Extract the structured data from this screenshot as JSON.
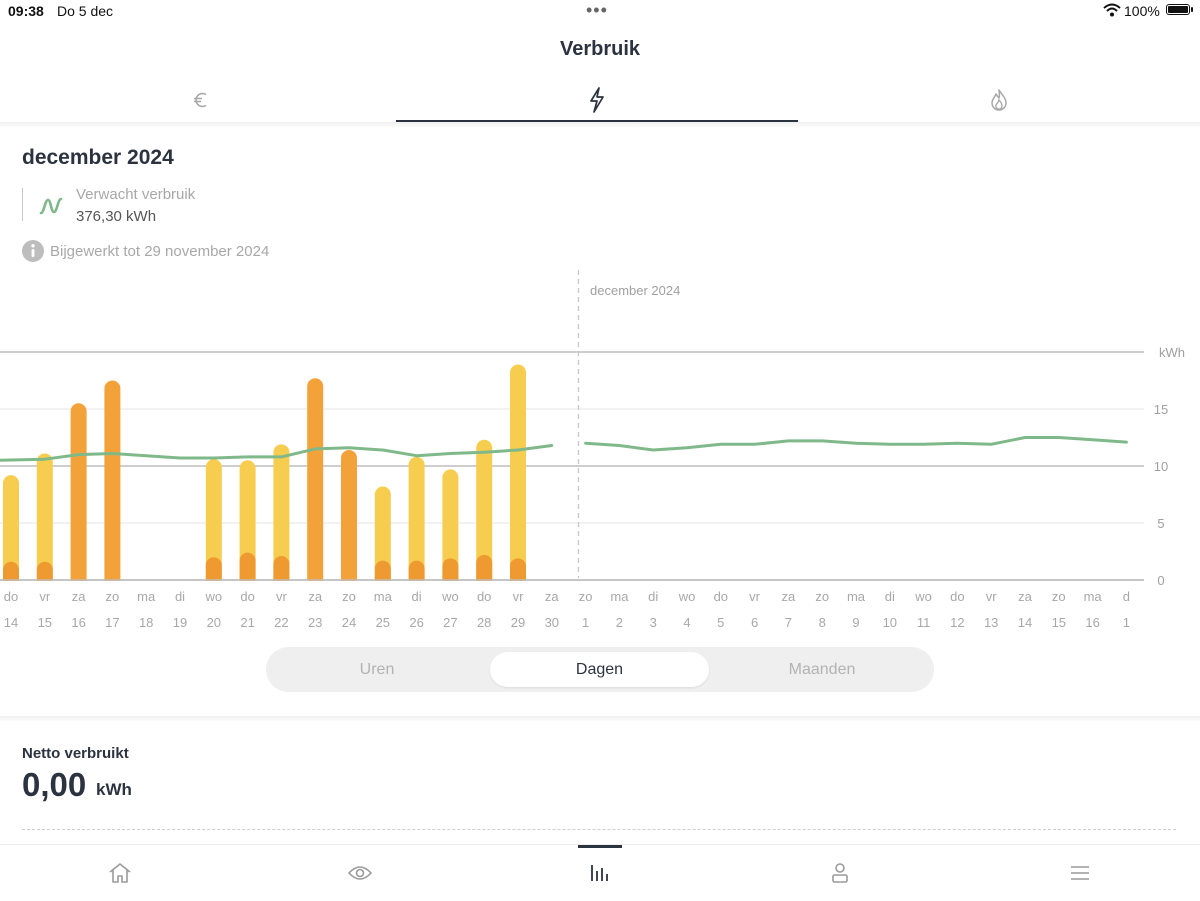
{
  "status_bar": {
    "time": "09:38",
    "date": "Do 5 dec",
    "battery": "100%"
  },
  "header": {
    "title": "Verbruik"
  },
  "tabs": [
    {
      "name": "euro-icon",
      "active": false
    },
    {
      "name": "electricity-icon",
      "active": true
    },
    {
      "name": "gas-flame-icon",
      "active": false
    }
  ],
  "summary": {
    "month": "december 2024",
    "legend_label": "Verwacht verbruik",
    "legend_value": "376,30 kWh",
    "updated": "Bijgewerkt tot 29 november 2024"
  },
  "chart_data": {
    "type": "bar",
    "month_label": "december 2024",
    "unit": "kWh",
    "y_ticks": [
      0,
      5,
      10,
      15
    ],
    "ylim": [
      0,
      20
    ],
    "grid": true,
    "colors": {
      "weekday": "#f6cd4f",
      "weekend": "#f3a23a",
      "baseline": "#ee9a30",
      "expected": "#7fb98a",
      "grid": "#e9e9e9",
      "axis": "#bdbdbd"
    },
    "days": [
      {
        "dow": "do",
        "day": "14",
        "value": 9.2,
        "type": "weekday",
        "base": 1.6
      },
      {
        "dow": "vr",
        "day": "15",
        "value": 11.1,
        "type": "weekday",
        "base": 1.6
      },
      {
        "dow": "za",
        "day": "16",
        "value": 15.5,
        "type": "weekend",
        "base": 0
      },
      {
        "dow": "zo",
        "day": "17",
        "value": 17.5,
        "type": "weekend",
        "base": 0
      },
      {
        "dow": "ma",
        "day": "18",
        "value": null
      },
      {
        "dow": "di",
        "day": "19",
        "value": null
      },
      {
        "dow": "wo",
        "day": "20",
        "value": 10.6,
        "type": "weekday",
        "base": 2.0
      },
      {
        "dow": "do",
        "day": "21",
        "value": 10.5,
        "type": "weekday",
        "base": 2.4
      },
      {
        "dow": "vr",
        "day": "22",
        "value": 11.9,
        "type": "weekday",
        "base": 2.1
      },
      {
        "dow": "za",
        "day": "23",
        "value": 17.7,
        "type": "weekend",
        "base": 0
      },
      {
        "dow": "zo",
        "day": "24",
        "value": 11.4,
        "type": "weekend",
        "base": 0
      },
      {
        "dow": "ma",
        "day": "25",
        "value": 8.2,
        "type": "weekday",
        "base": 1.7
      },
      {
        "dow": "di",
        "day": "26",
        "value": 10.8,
        "type": "weekday",
        "base": 1.7
      },
      {
        "dow": "wo",
        "day": "27",
        "value": 9.7,
        "type": "weekday",
        "base": 1.9
      },
      {
        "dow": "do",
        "day": "28",
        "value": 12.3,
        "type": "weekday",
        "base": 2.2
      },
      {
        "dow": "vr",
        "day": "29",
        "value": 18.9,
        "type": "weekday",
        "base": 1.9
      },
      {
        "dow": "za",
        "day": "30",
        "value": null
      },
      {
        "dow": "zo",
        "day": "1",
        "value": null
      },
      {
        "dow": "ma",
        "day": "2",
        "value": null
      },
      {
        "dow": "di",
        "day": "3",
        "value": null
      },
      {
        "dow": "wo",
        "day": "4",
        "value": null
      },
      {
        "dow": "do",
        "day": "5",
        "value": null
      },
      {
        "dow": "vr",
        "day": "6",
        "value": null
      },
      {
        "dow": "za",
        "day": "7",
        "value": null
      },
      {
        "dow": "zo",
        "day": "8",
        "value": null
      },
      {
        "dow": "ma",
        "day": "9",
        "value": null
      },
      {
        "dow": "di",
        "day": "10",
        "value": null
      },
      {
        "dow": "wo",
        "day": "11",
        "value": null
      },
      {
        "dow": "do",
        "day": "12",
        "value": null
      },
      {
        "dow": "vr",
        "day": "13",
        "value": null
      },
      {
        "dow": "za",
        "day": "14",
        "value": null
      },
      {
        "dow": "zo",
        "day": "15",
        "value": null
      },
      {
        "dow": "ma",
        "day": "16",
        "value": null
      },
      {
        "dow": "d",
        "day": "1",
        "value": null
      }
    ],
    "expected_segment_1": [
      10.5,
      10.6,
      11.0,
      11.1,
      10.9,
      10.7,
      10.7,
      10.8,
      10.8,
      11.5,
      11.6,
      11.4,
      10.9,
      11.1,
      11.2,
      11.4,
      11.8
    ],
    "expected_segment_2": [
      12.0,
      11.8,
      11.4,
      11.6,
      11.9,
      11.9,
      12.2,
      12.2,
      12.0,
      11.9,
      11.9,
      12.0,
      11.9,
      12.5,
      12.5,
      12.3,
      12.1
    ]
  },
  "period_selector": {
    "options": [
      "Uren",
      "Dagen",
      "Maanden"
    ],
    "selected": "Dagen"
  },
  "net": {
    "label": "Netto verbruikt",
    "value": "0,00",
    "unit": "kWh"
  },
  "bottom_nav": [
    {
      "name": "home-icon",
      "active": false
    },
    {
      "name": "eye-icon",
      "active": false
    },
    {
      "name": "bar-chart-icon",
      "active": true
    },
    {
      "name": "user-icon",
      "active": false
    },
    {
      "name": "menu-icon",
      "active": false
    }
  ]
}
